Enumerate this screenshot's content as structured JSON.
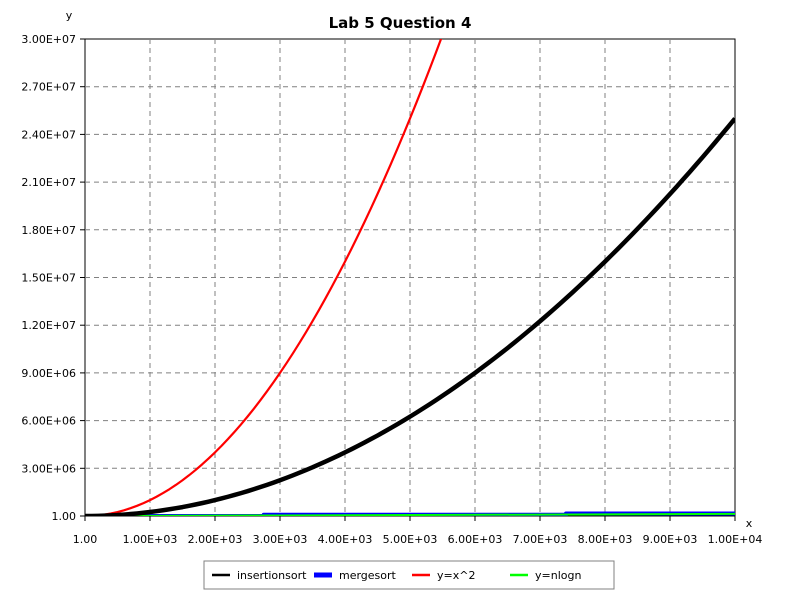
{
  "chart_data": {
    "type": "line",
    "title": "Lab 5 Question 4",
    "xlabel": "x",
    "ylabel": "y",
    "xlim": [
      1,
      10000
    ],
    "ylim": [
      1,
      30000000
    ],
    "grid": true,
    "legend_position": "bottom",
    "x_ticks": [
      "1.00",
      "1.00E+03",
      "2.00E+03",
      "3.00E+03",
      "4.00E+03",
      "5.00E+03",
      "6.00E+03",
      "7.00E+03",
      "8.00E+03",
      "9.00E+03",
      "1.00E+04"
    ],
    "y_ticks": [
      "1.00",
      "3.00E+06",
      "6.00E+06",
      "9.00E+06",
      "1.20E+07",
      "1.50E+07",
      "1.80E+07",
      "2.10E+07",
      "2.40E+07",
      "2.70E+07",
      "3.00E+07"
    ],
    "series": [
      {
        "name": "insertionsort",
        "color": "#000000",
        "x": [
          0,
          500,
          1000,
          1500,
          2000,
          2500,
          3000,
          3500,
          4000,
          4500,
          5000,
          5500,
          6000,
          6500,
          7000,
          7500,
          8000,
          8500,
          9000,
          9500,
          10000
        ],
        "y": [
          0,
          60000,
          250000,
          560000,
          1000000,
          1560000,
          2250000,
          3060000,
          4000000,
          5060000,
          6250000,
          7560000,
          9000000,
          10560000,
          12250000,
          14060000,
          16000000,
          18060000,
          20250000,
          22560000,
          25000000
        ]
      },
      {
        "name": "mergesort",
        "color": "#0000ff",
        "x": [
          0,
          2750,
          2750,
          7400,
          7400,
          10000
        ],
        "y": [
          0,
          0,
          80000,
          80000,
          160000,
          160000
        ]
      },
      {
        "name": "y=x^2",
        "color": "#ff0000",
        "x": [
          0,
          500,
          1000,
          1500,
          2000,
          2500,
          3000,
          3500,
          4000,
          4500,
          5000,
          5500
        ],
        "y": [
          0,
          250000,
          1000000,
          2250000,
          4000000,
          6250000,
          9000000,
          12250000,
          16000000,
          20250000,
          25000000,
          30250000
        ]
      },
      {
        "name": "y=nlogn",
        "color": "#00ff00",
        "x": [
          0,
          1000,
          2000,
          3000,
          4000,
          5000,
          6000,
          7000,
          8000,
          9000,
          10000
        ],
        "y": [
          0,
          9966,
          21932,
          34652,
          47863,
          61439,
          75304,
          89411,
          103726,
          118221,
          132877
        ]
      }
    ]
  }
}
